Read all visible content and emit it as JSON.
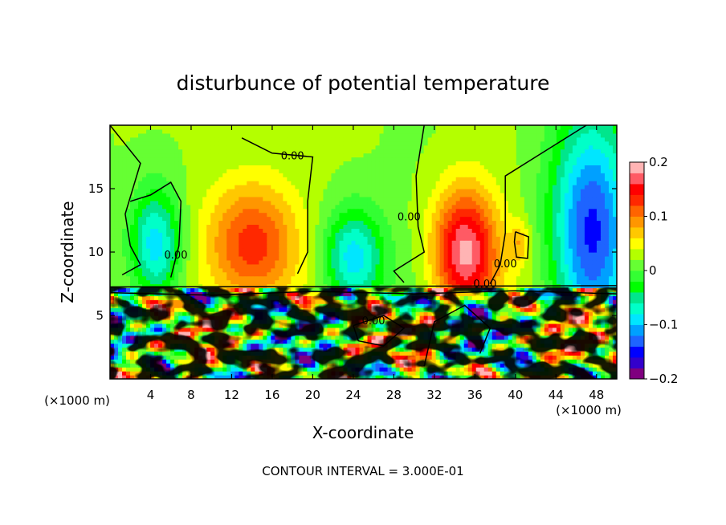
{
  "chart_data": {
    "type": "heatmap",
    "title": "disturbunce of potential temperature",
    "xlabel": "X-coordinate",
    "ylabel": "Z-coordinate",
    "x_unit_left": "(×1000 m)",
    "x_unit_right": "(×1000 m)",
    "xlim": [
      0,
      50
    ],
    "ylim": [
      0,
      20
    ],
    "x_ticks": [
      4,
      8,
      12,
      16,
      20,
      24,
      28,
      32,
      36,
      40,
      44,
      48
    ],
    "y_ticks": [
      5,
      10,
      15
    ],
    "footer": "CONTOUR INTERVAL = 3.000E-01",
    "colorbar": {
      "min": -0.2,
      "max": 0.2,
      "ticks": [
        {
          "value": 0.2,
          "label": "0.2"
        },
        {
          "value": 0.1,
          "label": "0.1"
        },
        {
          "value": 0,
          "label": "0"
        },
        {
          "value": -0.1,
          "label": "−0.1"
        },
        {
          "value": -0.2,
          "label": "−0.2"
        }
      ],
      "colors": [
        "#7f007f",
        "#3300cc",
        "#0000ff",
        "#1e64ff",
        "#00a0ff",
        "#00e6ff",
        "#00ffc8",
        "#00e68c",
        "#00ff00",
        "#33ff33",
        "#66ff33",
        "#b4ff00",
        "#ffff00",
        "#ffc800",
        "#ff9600",
        "#ff6400",
        "#ff2800",
        "#ff0000",
        "#ff5a64",
        "#ffb4b4"
      ]
    },
    "contour_labels": [
      {
        "text": "0.00",
        "x": 18,
        "y": 17.3
      },
      {
        "text": "0.00",
        "x": 6.5,
        "y": 9.5
      },
      {
        "text": "0.00",
        "x": 29.5,
        "y": 12.5
      },
      {
        "text": "0.00",
        "x": 39,
        "y": 8.8
      },
      {
        "text": "0.00",
        "x": 37,
        "y": 7.2
      },
      {
        "text": "0.00",
        "x": 26,
        "y": 4.3
      }
    ],
    "field_features": [
      {
        "kind": "neg",
        "x": 4.5,
        "y": 10.5,
        "rx": 2.5,
        "ry": 4.5,
        "amp": -0.12
      },
      {
        "kind": "pos",
        "x": 14.0,
        "y": 10.5,
        "rx": 4.5,
        "ry": 5.0,
        "amp": 0.12
      },
      {
        "kind": "neg",
        "x": 24.0,
        "y": 9.5,
        "rx": 3.0,
        "ry": 4.0,
        "amp": -0.12
      },
      {
        "kind": "pos",
        "x": 35.0,
        "y": 10.0,
        "rx": 3.2,
        "ry": 5.0,
        "amp": 0.17
      },
      {
        "kind": "neg",
        "x": 47.5,
        "y": 12.0,
        "rx": 4.0,
        "ry": 9.0,
        "amp": -0.16
      },
      {
        "kind": "pos",
        "x": 40.5,
        "y": 10.8,
        "rx": 1.0,
        "ry": 1.6,
        "amp": 0.05
      }
    ]
  }
}
